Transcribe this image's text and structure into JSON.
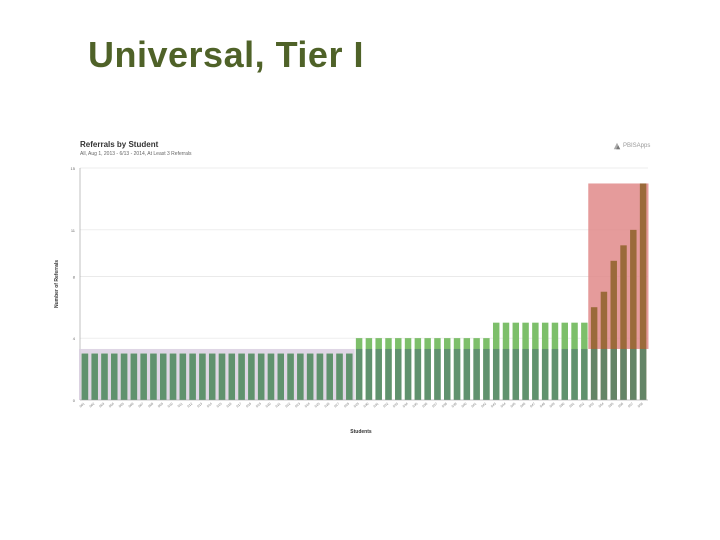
{
  "slide": {
    "title": "Universal, Tier I"
  },
  "brand": {
    "name": "PBISApps",
    "icon": "pbis-logo-icon"
  },
  "colors": {
    "title": "#4f6228",
    "bar_green": "#7dbf6a",
    "bar_dark_overlay": "#5a8a6e",
    "bar_brown": "#9b6a3a",
    "band_purple": "#d9cfe0",
    "band_red": "#e08a8a",
    "grid": "#dddddd"
  },
  "chart_data": {
    "type": "bar",
    "title": "Referrals by Student",
    "subtitle": "All, Aug 1, 2013 - 6/13 - 2014, At Least 3 Referrals",
    "xlabel": "Students",
    "ylabel": "Number of Referrals",
    "ylim": [
      0,
      15
    ],
    "yticks": [
      0,
      4,
      8,
      11,
      15
    ],
    "categories": [
      "S01",
      "S02",
      "S03",
      "S04",
      "S05",
      "S06",
      "S07",
      "S08",
      "S09",
      "S10",
      "S11",
      "S12",
      "S13",
      "S14",
      "S15",
      "S16",
      "S17",
      "S18",
      "S19",
      "S20",
      "S21",
      "S22",
      "S23",
      "S24",
      "S25",
      "S26",
      "S27",
      "S28",
      "S29",
      "S30",
      "S31",
      "S32",
      "S33",
      "S34",
      "S35",
      "S36",
      "S37",
      "S38",
      "S39",
      "S40",
      "S41",
      "S42",
      "S43",
      "S44",
      "S45",
      "S46",
      "S47",
      "S48",
      "S49",
      "S50",
      "S51",
      "S52",
      "S53",
      "S54",
      "S55",
      "S56",
      "S57",
      "S58"
    ],
    "values": [
      3,
      3,
      3,
      3,
      3,
      3,
      3,
      3,
      3,
      3,
      3,
      3,
      3,
      3,
      3,
      3,
      3,
      3,
      3,
      3,
      3,
      3,
      3,
      3,
      3,
      3,
      3,
      3,
      4,
      4,
      4,
      4,
      4,
      4,
      4,
      4,
      4,
      4,
      4,
      4,
      4,
      4,
      5,
      5,
      5,
      5,
      5,
      5,
      5,
      5,
      5,
      5,
      6,
      7,
      9,
      10,
      11,
      14
    ],
    "bands": [
      {
        "name": "universal",
        "from": 0,
        "to": 3.3,
        "range_start": 0,
        "range_end": 28,
        "color": "#d9cfe0"
      },
      {
        "name": "intensive",
        "from": 3.3,
        "to": 14,
        "range_start": 52,
        "range_end": 58,
        "color": "#e08a8a"
      }
    ],
    "grid": true,
    "legend": "none"
  }
}
